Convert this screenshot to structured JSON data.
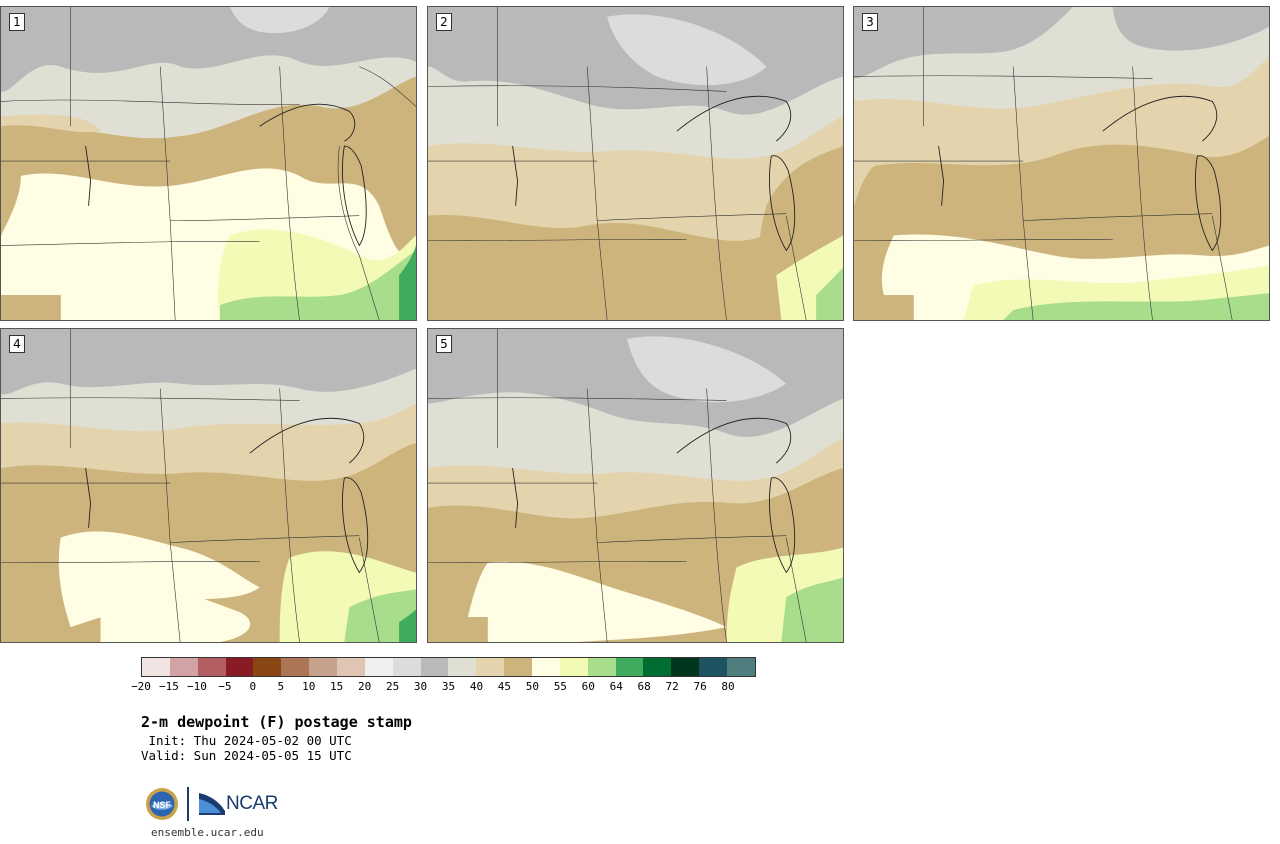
{
  "panels": [
    {
      "label": "1"
    },
    {
      "label": "2"
    },
    {
      "label": "3"
    },
    {
      "label": "4"
    },
    {
      "label": "5"
    }
  ],
  "legend": {
    "colors": [
      "#f3e4e4",
      "#d2a2a5",
      "#b25e63",
      "#891b24",
      "#8a4613",
      "#ac7556",
      "#c6a18c",
      "#e0c5b4",
      "#f0f0f0",
      "#dcdcdc",
      "#b9b9b9",
      "#e0dfd4",
      "#e4d4ad",
      "#cdb47c",
      "#fffde4",
      "#f3fab5",
      "#a8dd8c",
      "#41ab5d",
      "#006d32",
      "#00361e",
      "#1e5362",
      "#4f7e7e"
    ],
    "ticks": [
      "−20",
      "−15",
      "−10",
      "−5",
      "0",
      "5",
      "10",
      "15",
      "20",
      "25",
      "30",
      "35",
      "40",
      "45",
      "50",
      "55",
      "60",
      "64",
      "68",
      "72",
      "76",
      "80"
    ]
  },
  "title": "2-m dewpoint (F) postage stamp",
  "init": " Init: Thu 2024-05-02 00 UTC",
  "valid": "Valid: Sun 2024-05-05 15 UTC",
  "logos": {
    "ncar": "NCAR",
    "nsf": "NSF"
  },
  "url": "ensemble.ucar.edu"
}
